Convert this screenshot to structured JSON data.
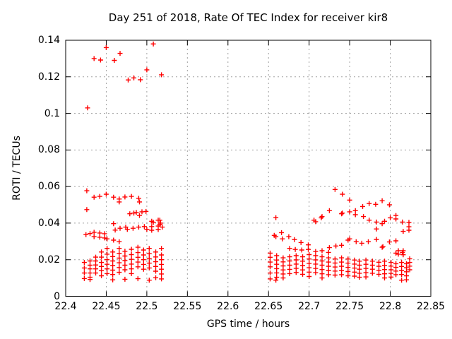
{
  "chart_data": {
    "type": "scatter",
    "title": "Day 251 of 2018, Rate Of TEC Index for receiver kir8",
    "xlabel": "GPS time / hours",
    "ylabel": "ROTI / TECUs",
    "xlim": [
      22.4,
      22.85
    ],
    "ylim": [
      0,
      0.14
    ],
    "grid": true,
    "legend": "none",
    "marker": "plus",
    "colors": {
      "points": "#ff0000",
      "grid": "#a0a0a0",
      "border": "#000000",
      "text": "#000000",
      "background": "#ffffff"
    },
    "xticks": [
      {
        "v": 22.4,
        "label": "22.4"
      },
      {
        "v": 22.45,
        "label": "22.45"
      },
      {
        "v": 22.5,
        "label": "22.5"
      },
      {
        "v": 22.55,
        "label": "22.55"
      },
      {
        "v": 22.6,
        "label": "22.6"
      },
      {
        "v": 22.65,
        "label": "22.65"
      },
      {
        "v": 22.7,
        "label": "22.7"
      },
      {
        "v": 22.75,
        "label": "22.75"
      },
      {
        "v": 22.8,
        "label": "22.8"
      },
      {
        "v": 22.85,
        "label": "22.85"
      }
    ],
    "yticks": [
      {
        "v": 0,
        "label": "0"
      },
      {
        "v": 0.02,
        "label": "0.02"
      },
      {
        "v": 0.04,
        "label": "0.04"
      },
      {
        "v": 0.06,
        "label": "0.06"
      },
      {
        "v": 0.08,
        "label": "0.08"
      },
      {
        "v": 0.1,
        "label": "0.1"
      },
      {
        "v": 0.12,
        "label": "0.12"
      },
      {
        "v": 0.14,
        "label": "0.14"
      }
    ],
    "points": [
      [
        22.427,
        0.103
      ],
      [
        22.435,
        0.13
      ],
      [
        22.443,
        0.1292
      ],
      [
        22.45,
        0.136
      ],
      [
        22.46,
        0.129
      ],
      [
        22.467,
        0.1328
      ],
      [
        22.477,
        0.1183
      ],
      [
        22.484,
        0.1194
      ],
      [
        22.492,
        0.1184
      ],
      [
        22.5,
        0.1238
      ],
      [
        22.508,
        0.138
      ],
      [
        22.518,
        0.1211
      ],
      [
        22.426,
        0.0577
      ],
      [
        22.435,
        0.0542
      ],
      [
        22.442,
        0.0546
      ],
      [
        22.45,
        0.0558
      ],
      [
        22.459,
        0.0542
      ],
      [
        22.466,
        0.0532
      ],
      [
        22.466,
        0.0516
      ],
      [
        22.473,
        0.0543
      ],
      [
        22.481,
        0.0546
      ],
      [
        22.49,
        0.0536
      ],
      [
        22.491,
        0.0516
      ],
      [
        22.426,
        0.0474
      ],
      [
        22.484,
        0.0455
      ],
      [
        22.491,
        0.0442
      ],
      [
        22.499,
        0.0464
      ],
      [
        22.479,
        0.0451
      ],
      [
        22.487,
        0.0458
      ],
      [
        22.494,
        0.0462
      ],
      [
        22.506,
        0.041
      ],
      [
        22.514,
        0.0416
      ],
      [
        22.517,
        0.04
      ],
      [
        22.459,
        0.0397
      ],
      [
        22.461,
        0.0362
      ],
      [
        22.467,
        0.0372
      ],
      [
        22.474,
        0.0378
      ],
      [
        22.476,
        0.0366
      ],
      [
        22.483,
        0.0372
      ],
      [
        22.49,
        0.0378
      ],
      [
        22.497,
        0.0381
      ],
      [
        22.5,
        0.0366
      ],
      [
        22.506,
        0.0381
      ],
      [
        22.506,
        0.0361
      ],
      [
        22.508,
        0.0404
      ],
      [
        22.514,
        0.0384
      ],
      [
        22.514,
        0.0365
      ],
      [
        22.516,
        0.0416
      ],
      [
        22.516,
        0.0393
      ],
      [
        22.519,
        0.0378
      ],
      [
        22.425,
        0.0337
      ],
      [
        22.43,
        0.0343
      ],
      [
        22.435,
        0.035
      ],
      [
        22.435,
        0.0326
      ],
      [
        22.442,
        0.0346
      ],
      [
        22.442,
        0.0323
      ],
      [
        22.448,
        0.0342
      ],
      [
        22.448,
        0.0319
      ],
      [
        22.451,
        0.0314
      ],
      [
        22.459,
        0.0307
      ],
      [
        22.466,
        0.0298
      ],
      [
        22.423,
        0.0185
      ],
      [
        22.423,
        0.0155
      ],
      [
        22.423,
        0.0127
      ],
      [
        22.423,
        0.0097
      ],
      [
        22.43,
        0.0193
      ],
      [
        22.43,
        0.017
      ],
      [
        22.43,
        0.015
      ],
      [
        22.43,
        0.0127
      ],
      [
        22.43,
        0.0104
      ],
      [
        22.43,
        0.0092
      ],
      [
        22.437,
        0.0214
      ],
      [
        22.437,
        0.0193
      ],
      [
        22.437,
        0.0171
      ],
      [
        22.437,
        0.015
      ],
      [
        22.437,
        0.0127
      ],
      [
        22.444,
        0.0242
      ],
      [
        22.444,
        0.0214
      ],
      [
        22.444,
        0.0185
      ],
      [
        22.444,
        0.0163
      ],
      [
        22.444,
        0.014
      ],
      [
        22.444,
        0.0112
      ],
      [
        22.451,
        0.0262
      ],
      [
        22.451,
        0.023
      ],
      [
        22.451,
        0.02
      ],
      [
        22.451,
        0.0175
      ],
      [
        22.451,
        0.015
      ],
      [
        22.451,
        0.0124
      ],
      [
        22.458,
        0.0242
      ],
      [
        22.458,
        0.0217
      ],
      [
        22.458,
        0.0193
      ],
      [
        22.458,
        0.0168
      ],
      [
        22.458,
        0.0143
      ],
      [
        22.458,
        0.0119
      ],
      [
        22.458,
        0.009
      ],
      [
        22.466,
        0.0262
      ],
      [
        22.466,
        0.0235
      ],
      [
        22.466,
        0.0209
      ],
      [
        22.466,
        0.0183
      ],
      [
        22.466,
        0.0157
      ],
      [
        22.466,
        0.0131
      ],
      [
        22.473,
        0.0246
      ],
      [
        22.473,
        0.022
      ],
      [
        22.473,
        0.0195
      ],
      [
        22.473,
        0.017
      ],
      [
        22.473,
        0.0145
      ],
      [
        22.473,
        0.0093
      ],
      [
        22.481,
        0.0257
      ],
      [
        22.481,
        0.0228
      ],
      [
        22.481,
        0.0202
      ],
      [
        22.481,
        0.0176
      ],
      [
        22.481,
        0.015
      ],
      [
        22.481,
        0.0124
      ],
      [
        22.489,
        0.0268
      ],
      [
        22.489,
        0.0239
      ],
      [
        22.489,
        0.0213
      ],
      [
        22.489,
        0.0187
      ],
      [
        22.489,
        0.0161
      ],
      [
        22.489,
        0.0096
      ],
      [
        22.496,
        0.0253
      ],
      [
        22.496,
        0.0226
      ],
      [
        22.496,
        0.02
      ],
      [
        22.496,
        0.0174
      ],
      [
        22.496,
        0.0148
      ],
      [
        22.503,
        0.0262
      ],
      [
        22.503,
        0.0233
      ],
      [
        22.503,
        0.0207
      ],
      [
        22.503,
        0.0181
      ],
      [
        22.503,
        0.0155
      ],
      [
        22.503,
        0.0088
      ],
      [
        22.511,
        0.0242
      ],
      [
        22.511,
        0.0215
      ],
      [
        22.511,
        0.0189
      ],
      [
        22.511,
        0.0163
      ],
      [
        22.511,
        0.0137
      ],
      [
        22.511,
        0.0101
      ],
      [
        22.518,
        0.0262
      ],
      [
        22.518,
        0.0226
      ],
      [
        22.518,
        0.02
      ],
      [
        22.518,
        0.0174
      ],
      [
        22.518,
        0.0148
      ],
      [
        22.518,
        0.0122
      ],
      [
        22.518,
        0.0095
      ],
      [
        22.659,
        0.043
      ],
      [
        22.706,
        0.0416
      ],
      [
        22.708,
        0.0408
      ],
      [
        22.715,
        0.0429
      ],
      [
        22.716,
        0.0436
      ],
      [
        22.725,
        0.0468
      ],
      [
        22.732,
        0.0584
      ],
      [
        22.74,
        0.0451
      ],
      [
        22.741,
        0.0558
      ],
      [
        22.741,
        0.0455
      ],
      [
        22.75,
        0.0526
      ],
      [
        22.75,
        0.0462
      ],
      [
        22.757,
        0.0468
      ],
      [
        22.757,
        0.0446
      ],
      [
        22.766,
        0.0491
      ],
      [
        22.774,
        0.0507
      ],
      [
        22.782,
        0.0503
      ],
      [
        22.79,
        0.0522
      ],
      [
        22.799,
        0.05
      ],
      [
        22.767,
        0.0436
      ],
      [
        22.774,
        0.0416
      ],
      [
        22.783,
        0.0406
      ],
      [
        22.79,
        0.0397
      ],
      [
        22.793,
        0.041
      ],
      [
        22.8,
        0.0429
      ],
      [
        22.807,
        0.0442
      ],
      [
        22.807,
        0.0423
      ],
      [
        22.815,
        0.0406
      ],
      [
        22.823,
        0.0404
      ],
      [
        22.823,
        0.038
      ],
      [
        22.816,
        0.0355
      ],
      [
        22.823,
        0.0361
      ],
      [
        22.783,
        0.0368
      ],
      [
        22.657,
        0.0333
      ],
      [
        22.659,
        0.0326
      ],
      [
        22.666,
        0.0348
      ],
      [
        22.667,
        0.0314
      ],
      [
        22.675,
        0.0326
      ],
      [
        22.676,
        0.0262
      ],
      [
        22.682,
        0.031
      ],
      [
        22.683,
        0.0256
      ],
      [
        22.69,
        0.0294
      ],
      [
        22.691,
        0.0253
      ],
      [
        22.699,
        0.0281
      ],
      [
        22.699,
        0.0256
      ],
      [
        22.708,
        0.0245
      ],
      [
        22.716,
        0.0249
      ],
      [
        22.724,
        0.024
      ],
      [
        22.725,
        0.0266
      ],
      [
        22.733,
        0.0275
      ],
      [
        22.74,
        0.0279
      ],
      [
        22.748,
        0.0307
      ],
      [
        22.75,
        0.0314
      ],
      [
        22.758,
        0.0298
      ],
      [
        22.765,
        0.029
      ],
      [
        22.773,
        0.0298
      ],
      [
        22.783,
        0.0311
      ],
      [
        22.79,
        0.0268
      ],
      [
        22.791,
        0.0271
      ],
      [
        22.799,
        0.0297
      ],
      [
        22.807,
        0.0303
      ],
      [
        22.81,
        0.0249
      ],
      [
        22.81,
        0.023
      ],
      [
        22.816,
        0.0249
      ],
      [
        22.816,
        0.0227
      ],
      [
        22.807,
        0.0236
      ],
      [
        22.815,
        0.0239
      ],
      [
        22.652,
        0.0236
      ],
      [
        22.652,
        0.0213
      ],
      [
        22.652,
        0.0187
      ],
      [
        22.652,
        0.0161
      ],
      [
        22.652,
        0.0127
      ],
      [
        22.652,
        0.0095
      ],
      [
        22.66,
        0.0222
      ],
      [
        22.66,
        0.0198
      ],
      [
        22.66,
        0.0175
      ],
      [
        22.66,
        0.0151
      ],
      [
        22.66,
        0.0128
      ],
      [
        22.66,
        0.0104
      ],
      [
        22.659,
        0.0088
      ],
      [
        22.668,
        0.021
      ],
      [
        22.668,
        0.0188
      ],
      [
        22.668,
        0.0166
      ],
      [
        22.668,
        0.0144
      ],
      [
        22.668,
        0.0122
      ],
      [
        22.668,
        0.01
      ],
      [
        22.676,
        0.0216
      ],
      [
        22.676,
        0.0193
      ],
      [
        22.676,
        0.017
      ],
      [
        22.676,
        0.0147
      ],
      [
        22.676,
        0.0124
      ],
      [
        22.684,
        0.0222
      ],
      [
        22.684,
        0.0199
      ],
      [
        22.684,
        0.0176
      ],
      [
        22.684,
        0.0153
      ],
      [
        22.684,
        0.013
      ],
      [
        22.692,
        0.0216
      ],
      [
        22.692,
        0.0192
      ],
      [
        22.692,
        0.0168
      ],
      [
        22.692,
        0.0144
      ],
      [
        22.692,
        0.012
      ],
      [
        22.7,
        0.0228
      ],
      [
        22.7,
        0.0204
      ],
      [
        22.7,
        0.018
      ],
      [
        22.7,
        0.0156
      ],
      [
        22.7,
        0.0132
      ],
      [
        22.7,
        0.0108
      ],
      [
        22.708,
        0.0222
      ],
      [
        22.708,
        0.0199
      ],
      [
        22.708,
        0.0176
      ],
      [
        22.708,
        0.0152
      ],
      [
        22.708,
        0.0129
      ],
      [
        22.716,
        0.0216
      ],
      [
        22.716,
        0.0193
      ],
      [
        22.716,
        0.017
      ],
      [
        22.716,
        0.0146
      ],
      [
        22.716,
        0.0123
      ],
      [
        22.716,
        0.01
      ],
      [
        22.724,
        0.021
      ],
      [
        22.724,
        0.0187
      ],
      [
        22.724,
        0.0164
      ],
      [
        22.724,
        0.0141
      ],
      [
        22.724,
        0.0118
      ],
      [
        22.732,
        0.0204
      ],
      [
        22.732,
        0.0182
      ],
      [
        22.732,
        0.016
      ],
      [
        22.732,
        0.0138
      ],
      [
        22.732,
        0.0116
      ],
      [
        22.74,
        0.021
      ],
      [
        22.74,
        0.0187
      ],
      [
        22.74,
        0.0164
      ],
      [
        22.74,
        0.0141
      ],
      [
        22.74,
        0.0118
      ],
      [
        22.748,
        0.0204
      ],
      [
        22.748,
        0.0181
      ],
      [
        22.748,
        0.0158
      ],
      [
        22.748,
        0.0135
      ],
      [
        22.748,
        0.0112
      ],
      [
        22.756,
        0.0198
      ],
      [
        22.756,
        0.0176
      ],
      [
        22.756,
        0.0154
      ],
      [
        22.756,
        0.0132
      ],
      [
        22.756,
        0.011
      ],
      [
        22.762,
        0.0192
      ],
      [
        22.762,
        0.017
      ],
      [
        22.762,
        0.0148
      ],
      [
        22.762,
        0.0126
      ],
      [
        22.762,
        0.0104
      ],
      [
        22.77,
        0.0198
      ],
      [
        22.77,
        0.0175
      ],
      [
        22.77,
        0.0152
      ],
      [
        22.77,
        0.0129
      ],
      [
        22.77,
        0.0106
      ],
      [
        22.778,
        0.0192
      ],
      [
        22.778,
        0.017
      ],
      [
        22.778,
        0.0148
      ],
      [
        22.778,
        0.0126
      ],
      [
        22.786,
        0.0186
      ],
      [
        22.786,
        0.0164
      ],
      [
        22.786,
        0.0142
      ],
      [
        22.786,
        0.012
      ],
      [
        22.793,
        0.0192
      ],
      [
        22.793,
        0.0169
      ],
      [
        22.793,
        0.0146
      ],
      [
        22.793,
        0.0123
      ],
      [
        22.793,
        0.01
      ],
      [
        22.801,
        0.0185
      ],
      [
        22.801,
        0.0165
      ],
      [
        22.801,
        0.0145
      ],
      [
        22.801,
        0.0125
      ],
      [
        22.801,
        0.0105
      ],
      [
        22.807,
        0.0178
      ],
      [
        22.807,
        0.0158
      ],
      [
        22.807,
        0.0138
      ],
      [
        22.807,
        0.0118
      ],
      [
        22.814,
        0.0185
      ],
      [
        22.814,
        0.0163
      ],
      [
        22.814,
        0.0141
      ],
      [
        22.814,
        0.0119
      ],
      [
        22.814,
        0.0088
      ],
      [
        22.82,
        0.0178
      ],
      [
        22.82,
        0.0156
      ],
      [
        22.82,
        0.0134
      ],
      [
        22.82,
        0.0112
      ],
      [
        22.82,
        0.009
      ],
      [
        22.824,
        0.0205
      ],
      [
        22.824,
        0.0185
      ],
      [
        22.824,
        0.0165
      ],
      [
        22.824,
        0.0145
      ]
    ]
  }
}
